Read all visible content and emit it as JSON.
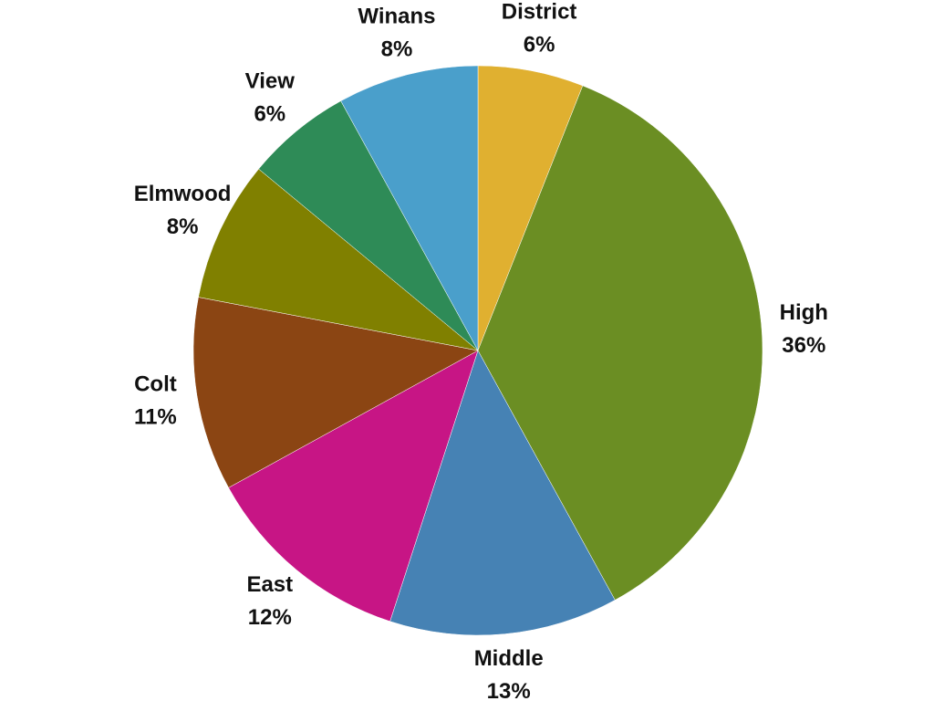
{
  "chart_data": {
    "type": "pie",
    "categories": [
      "District",
      "High",
      "Middle",
      "East",
      "Colt",
      "Elmwood",
      "View",
      "Winans"
    ],
    "values": [
      6,
      36,
      13,
      12,
      11,
      8,
      6,
      8
    ],
    "value_labels": [
      "6%",
      "36%",
      "13%",
      "12%",
      "11%",
      "8%",
      "6%",
      "8%"
    ],
    "colors": [
      "#e0b030",
      "#6b8e23",
      "#4682b4",
      "#c71585",
      "#8b4513",
      "#808000",
      "#2e8b57",
      "#4a9fcb"
    ]
  }
}
